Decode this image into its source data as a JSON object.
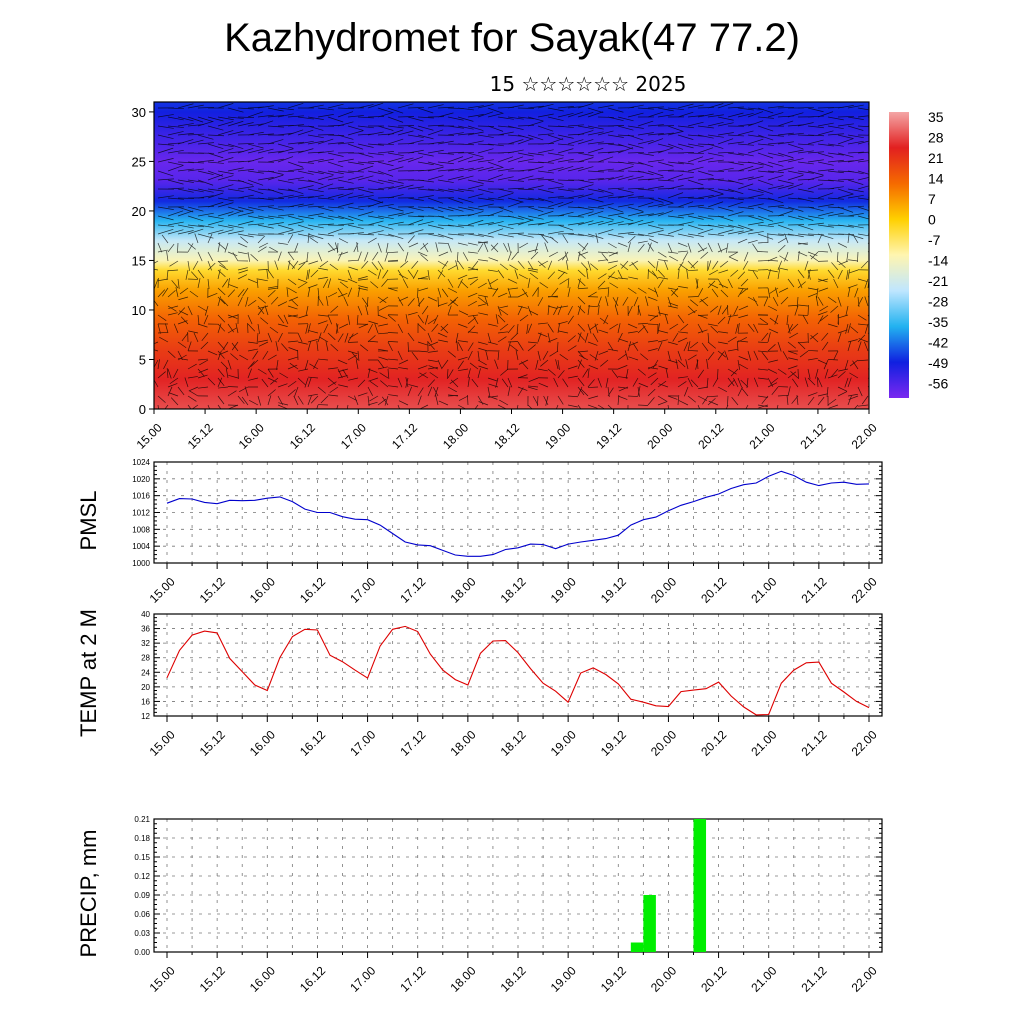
{
  "header": {
    "title": "Kazhydromet for Sayak(47 77.2)",
    "subtitle": "15 ☆☆☆☆☆☆ 2025"
  },
  "colors": {
    "pmsl_line": "#0000cc",
    "temp_line": "#dd0000",
    "precip_bar": "#00ee00",
    "axis": "#000000",
    "grid": "#777777",
    "colorbar_stops": [
      "#f4a6a6",
      "#e22020",
      "#f56a00",
      "#ffd000",
      "#fff5b0",
      "#bfe6ff",
      "#22b2f0",
      "#1020e0",
      "#7a28f0"
    ]
  },
  "time_labels": [
    "15.00",
    "15.12",
    "16.00",
    "16.12",
    "17.00",
    "17.12",
    "18.00",
    "18.12",
    "19.00",
    "19.12",
    "20.00",
    "20.12",
    "21.00",
    "21.12",
    "22.00"
  ],
  "chart_data": [
    {
      "type": "heatmap",
      "panel": "cross-section",
      "title": "",
      "x_tick_labels": [
        "15.00",
        "15.12",
        "16.00",
        "16.12",
        "17.00",
        "17.12",
        "18.00",
        "18.12",
        "19.00",
        "19.12",
        "20.00",
        "20.12",
        "21.00",
        "21.12",
        "22.00"
      ],
      "y_ticks": [
        0,
        5,
        10,
        15,
        20,
        25,
        30
      ],
      "ylim": [
        0,
        31
      ],
      "colorbar_labels": [
        "35",
        "28",
        "21",
        "14",
        "7",
        "0",
        "-7",
        "-14",
        "-21",
        "-28",
        "-35",
        "-42",
        "-49",
        "-56"
      ],
      "colorbar_range": [
        -60,
        38
      ],
      "levels_temp_profile": [
        [
          0,
          30
        ],
        [
          3,
          26
        ],
        [
          6,
          21
        ],
        [
          9,
          15
        ],
        [
          12,
          7
        ],
        [
          14,
          -2
        ],
        [
          15,
          -12
        ],
        [
          17,
          -22
        ],
        [
          19,
          -35
        ],
        [
          21,
          -47
        ],
        [
          23,
          -56
        ],
        [
          25,
          -58
        ],
        [
          27,
          -54
        ],
        [
          30,
          -48
        ],
        [
          31,
          -46
        ]
      ],
      "wind_barbs": true,
      "grid": false
    },
    {
      "type": "line",
      "panel": "pmsl",
      "ylabel": "PMSL",
      "x_tick_labels": [
        "15.00",
        "15.12",
        "16.00",
        "16.12",
        "17.00",
        "17.12",
        "18.00",
        "18.12",
        "19.00",
        "19.12",
        "20.00",
        "20.12",
        "21.00",
        "21.12",
        "22.00"
      ],
      "y_tick_labels": [
        "1000",
        "1004",
        "1008",
        "1012",
        "1016",
        "1020",
        "1024"
      ],
      "ylim": [
        1000,
        1024
      ],
      "x_hours_step": 3,
      "values": [
        1014.2,
        1015.3,
        1015.2,
        1014.4,
        1014.1,
        1014.9,
        1014.8,
        1014.9,
        1015.4,
        1015.7,
        1014.6,
        1012.8,
        1012.0,
        1012.0,
        1011.0,
        1010.4,
        1010.3,
        1009.0,
        1007.0,
        1005.0,
        1004.3,
        1004.1,
        1003.0,
        1001.9,
        1001.6,
        1001.6,
        1002.0,
        1003.2,
        1003.6,
        1004.5,
        1004.4,
        1003.4,
        1004.5,
        1005.0,
        1005.4,
        1005.8,
        1006.6,
        1009.0,
        1010.3,
        1010.9,
        1012.4,
        1013.7,
        1014.6,
        1015.6,
        1016.4,
        1017.7,
        1018.6,
        1019.0,
        1020.6,
        1021.8,
        1020.8,
        1019.2,
        1018.4,
        1019.0,
        1019.2,
        1018.7,
        1018.8
      ],
      "grid": true
    },
    {
      "type": "line",
      "panel": "temp",
      "ylabel": "TEMP at 2 M",
      "x_tick_labels": [
        "15.00",
        "15.12",
        "16.00",
        "16.12",
        "17.00",
        "17.12",
        "18.00",
        "18.12",
        "19.00",
        "19.12",
        "20.00",
        "20.12",
        "21.00",
        "21.12",
        "22.00"
      ],
      "y_tick_labels": [
        "12",
        "16",
        "20",
        "24",
        "28",
        "32",
        "36",
        "40"
      ],
      "ylim": [
        12,
        40
      ],
      "x_hours_step": 3,
      "values": [
        22.5,
        30.0,
        34.2,
        35.3,
        34.8,
        27.8,
        24.2,
        20.5,
        19.0,
        28.0,
        33.8,
        35.8,
        35.6,
        28.7,
        26.9,
        24.6,
        22.4,
        31.2,
        35.8,
        36.6,
        35.2,
        29.0,
        24.6,
        22.0,
        20.5,
        29.2,
        32.6,
        32.7,
        29.4,
        25.0,
        21.0,
        18.8,
        15.8,
        23.8,
        25.2,
        23.4,
        20.8,
        16.6,
        15.8,
        14.8,
        14.6,
        18.7,
        19.1,
        19.5,
        21.3,
        17.5,
        14.5,
        12.3,
        12.4,
        21.0,
        24.6,
        26.6,
        26.8,
        21.0,
        18.6,
        16.0,
        14.3
      ],
      "grid": true
    },
    {
      "type": "bar",
      "panel": "precip",
      "ylabel": "PRECIP, mm",
      "x_tick_labels": [
        "15.00",
        "15.12",
        "16.00",
        "16.12",
        "17.00",
        "17.12",
        "18.00",
        "18.12",
        "19.00",
        "19.12",
        "20.00",
        "20.12",
        "21.00",
        "21.12",
        "22.00"
      ],
      "y_tick_labels": [
        "0.00",
        "0.03",
        "0.06",
        "0.09",
        "0.12",
        "0.15",
        "0.18",
        "0.21"
      ],
      "ylim": [
        0,
        0.21
      ],
      "bars": [
        {
          "x_hours": 111,
          "value": 0.015
        },
        {
          "x_hours": 114,
          "value": 0.09
        },
        {
          "x_hours": 126,
          "value": 0.21
        }
      ],
      "grid": true
    }
  ]
}
